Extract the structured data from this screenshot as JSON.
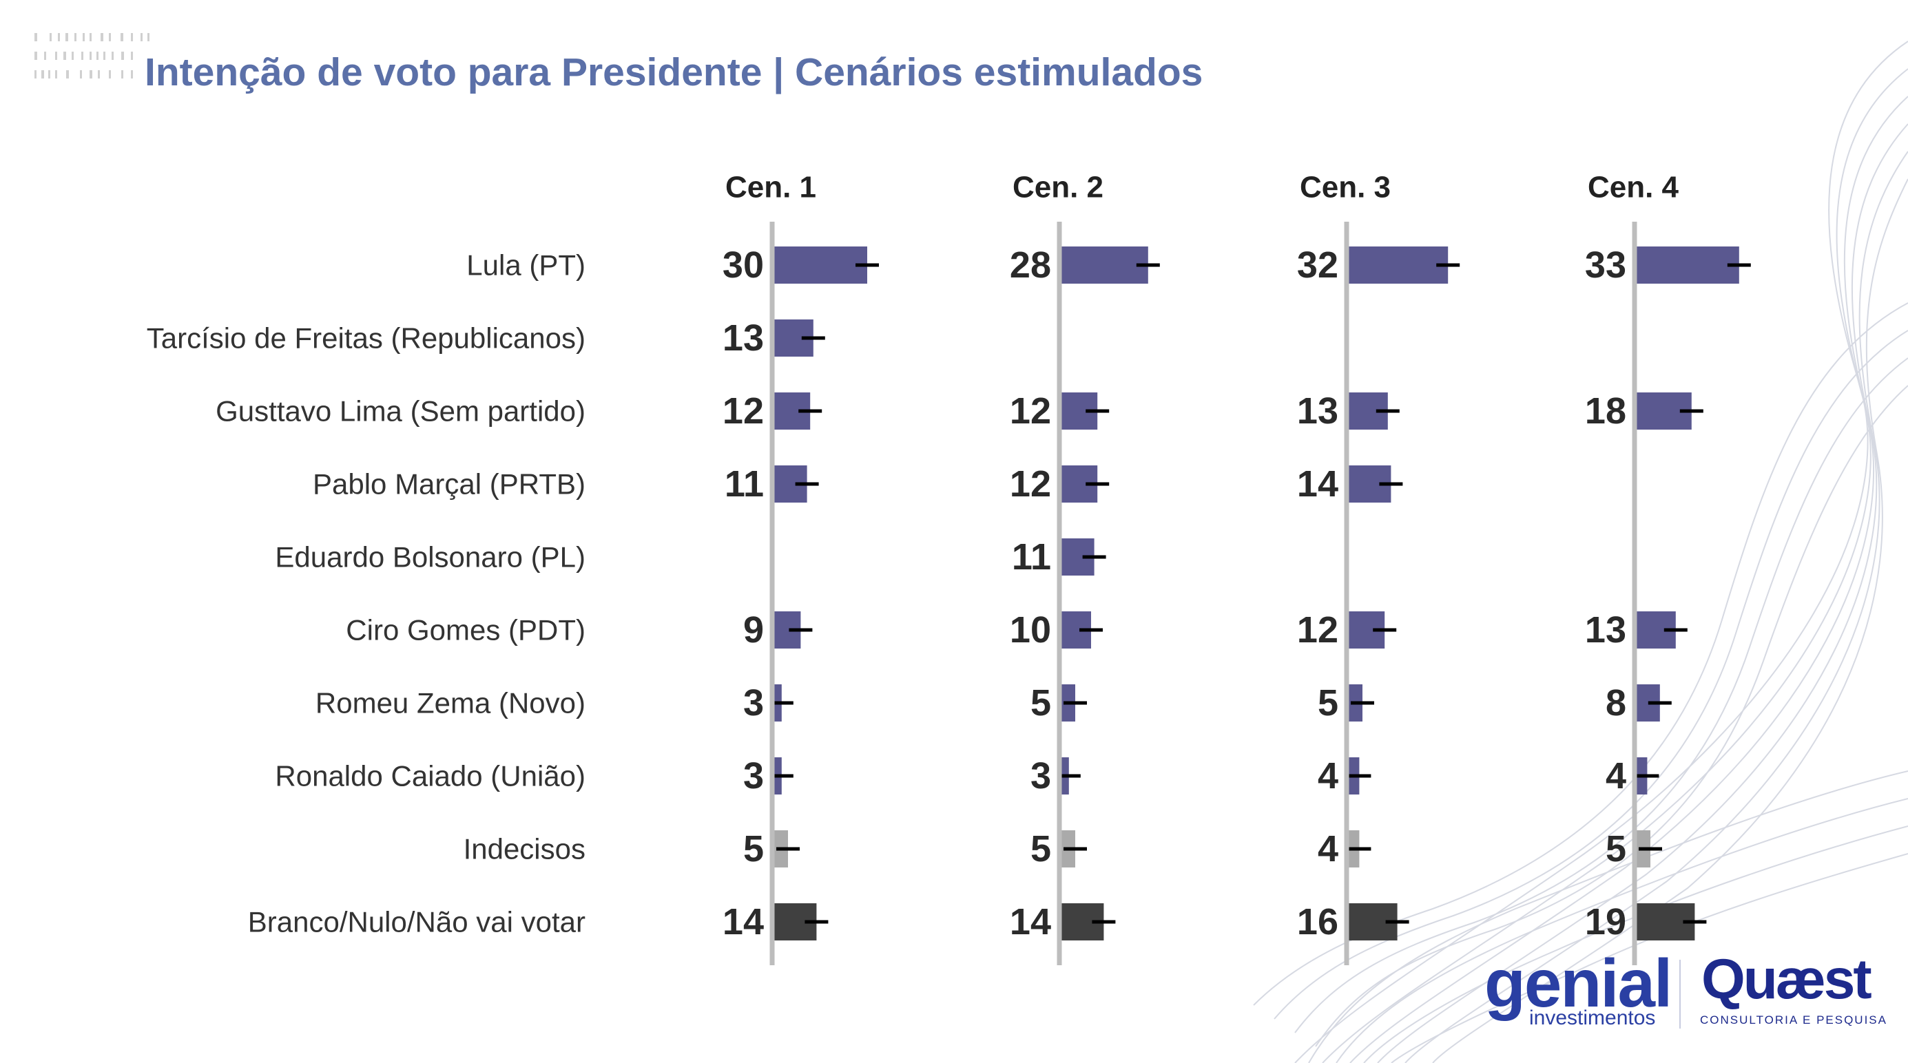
{
  "title": "Intenção de voto para Presidente | Cenários estimulados",
  "colors": {
    "title": "#5b70a8",
    "candidate_bar": "#5a5890",
    "undecided_bar": "#aaaaaa",
    "blank_bar": "#404040",
    "axis": "#bdbdbd",
    "error_bar": "#000000"
  },
  "logos": {
    "genial": "genial",
    "genial_sub": "investimentos",
    "quaest": "Quæst",
    "quaest_sub": "CONSULTORIA E PESQUISA"
  },
  "chart_data": {
    "type": "bar",
    "orientation": "horizontal",
    "panels": [
      "Cen. 1",
      "Cen. 2",
      "Cen. 3",
      "Cen. 4"
    ],
    "categories": [
      "Lula (PT)",
      "Tarcísio de Freitas (Republicanos)",
      "Gusttavo Lima (Sem partido)",
      "Pablo Marçal (PRTB)",
      "Eduardo Bolsonaro (PL)",
      "Ciro Gomes (PDT)",
      "Romeu Zema (Novo)",
      "Ronaldo Caiado (União)",
      "Indecisos",
      "Branco/Nulo/Não vai votar"
    ],
    "category_kind": [
      "candidate",
      "candidate",
      "candidate",
      "candidate",
      "candidate",
      "candidate",
      "candidate",
      "candidate",
      "undecided",
      "blank"
    ],
    "series": [
      {
        "name": "Cen. 1",
        "values": [
          30,
          13,
          12,
          11,
          null,
          9,
          3,
          3,
          5,
          14
        ]
      },
      {
        "name": "Cen. 2",
        "values": [
          28,
          null,
          12,
          12,
          11,
          10,
          5,
          3,
          5,
          14
        ]
      },
      {
        "name": "Cen. 3",
        "values": [
          32,
          null,
          13,
          14,
          null,
          12,
          5,
          4,
          4,
          16
        ]
      },
      {
        "name": "Cen. 4",
        "values": [
          33,
          null,
          18,
          null,
          null,
          13,
          8,
          4,
          5,
          19
        ]
      }
    ],
    "error_bars": true,
    "legend": "none",
    "grid": false
  }
}
